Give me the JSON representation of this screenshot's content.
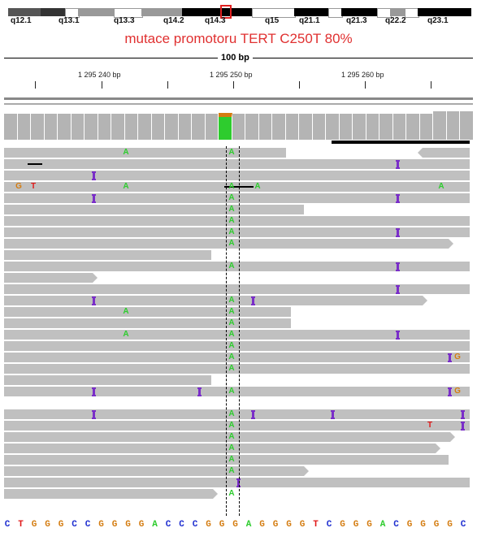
{
  "ideogram": {
    "band_labels": [
      "q12.1",
      "q13.1",
      "q13.3",
      "q14.2",
      "q14.3",
      "q15",
      "q21.1",
      "q21.3",
      "q22.2",
      "q23.1"
    ]
  },
  "title": "mutace promotoru TERT C250T 80%",
  "ruler": {
    "scale_label": "100 bp",
    "ticks": [
      "1 295 240 bp",
      "1 295 250 bp",
      "1 295 260 bp"
    ]
  },
  "colors": {
    "A": "#2ecc2e",
    "C": "#1f2fd0",
    "G": "#d47c10",
    "T": "#e01818",
    "insertion": "#7a2ec8",
    "read": "#c0c0c0",
    "coverage": "#b4b4b4",
    "title": "#e03030"
  },
  "sequence": "CTGGGCCGGGGACCCGGGAGGGGTCGGGACGGGGC",
  "mismatch_letters": {
    "A": "A",
    "G": "G",
    "T": "T"
  }
}
